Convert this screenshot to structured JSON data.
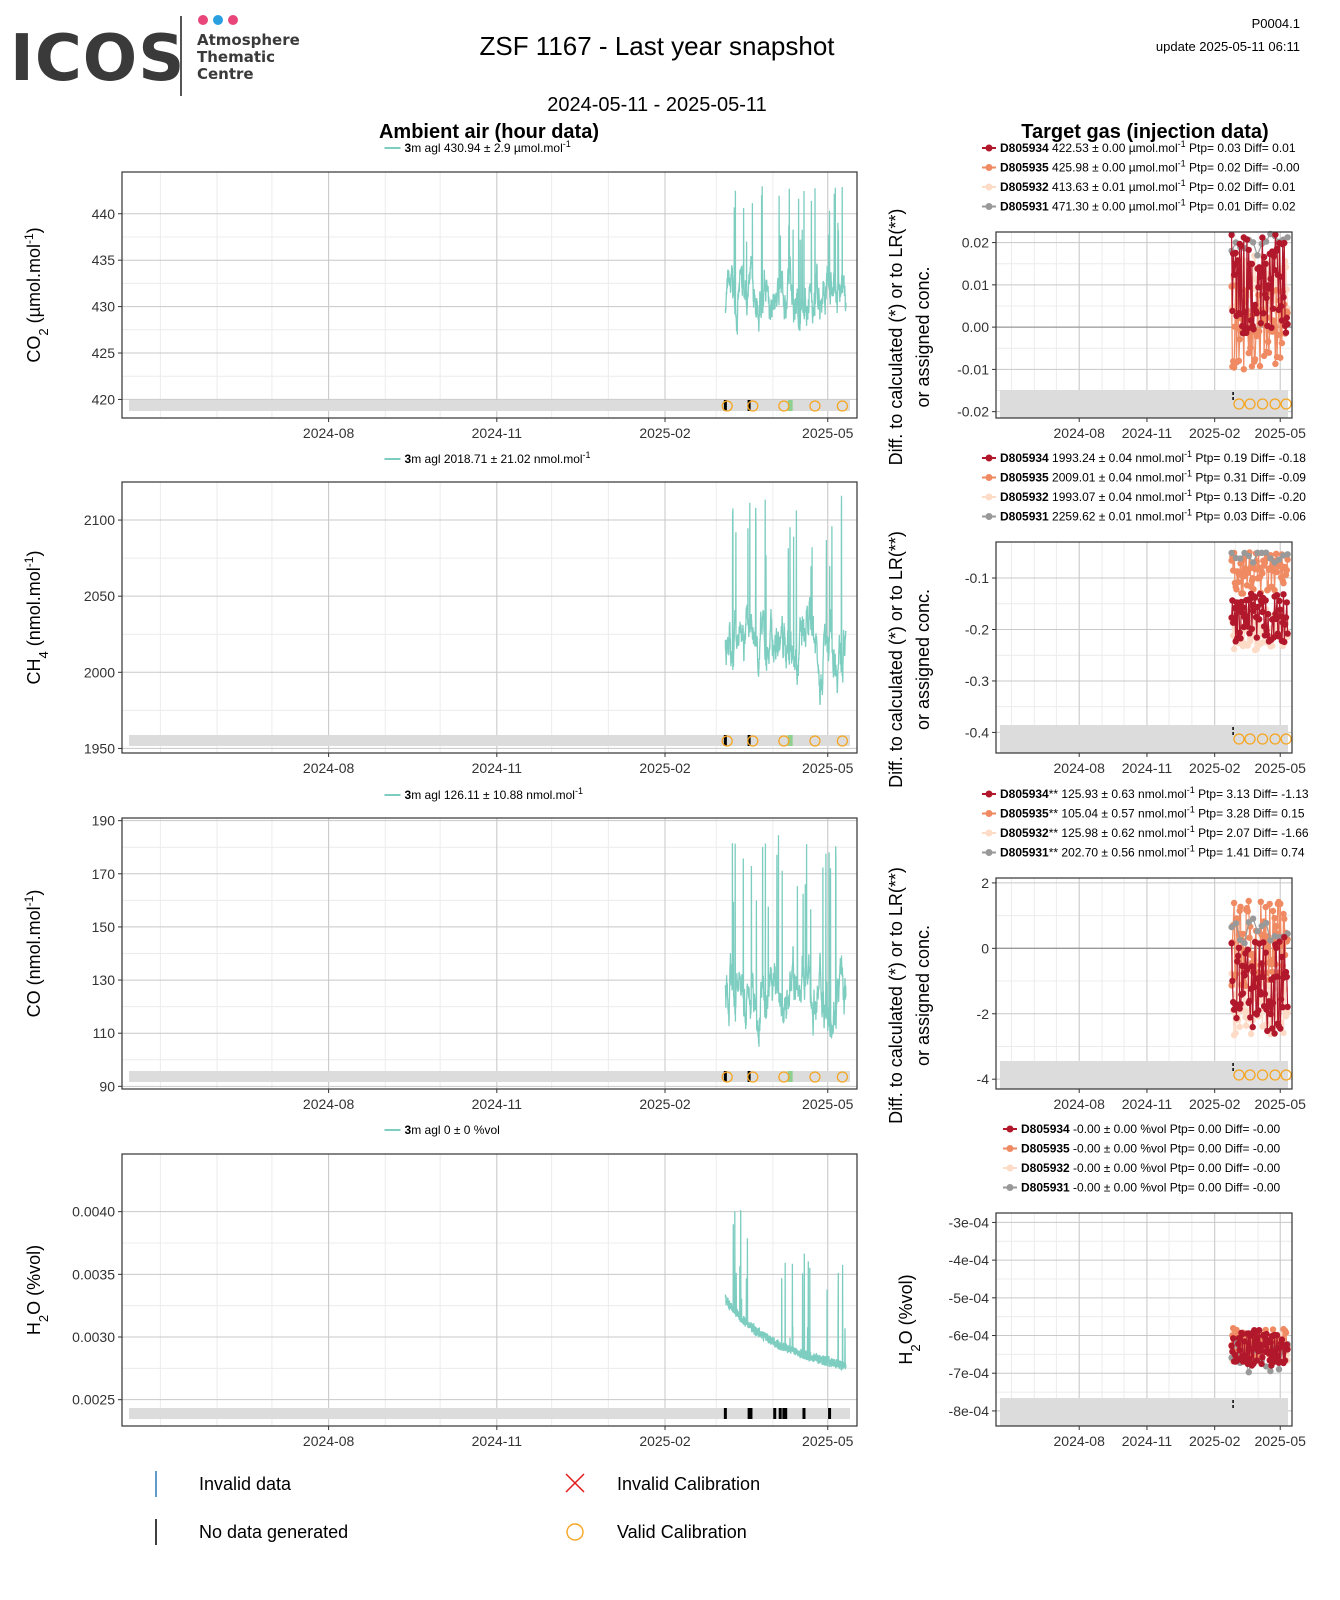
{
  "header": {
    "logo": {
      "wordmark": "ICOS",
      "lines": [
        "Atmosphere",
        "Thematic",
        "Centre"
      ],
      "dot_colors": [
        "#e8457a",
        "#2a9fe0",
        "#e8457a"
      ]
    },
    "title": "ZSF 1167 - Last year snapshot",
    "period": "2024-05-11 - 2025-05-11",
    "code": "P0004.1",
    "update": "update  2025-05-11 06:11"
  },
  "sections": {
    "ambient_title": "Ambient air (hour data)",
    "target_title": "Target gas (injection data)"
  },
  "colors": {
    "ambient_line": "#7dcdc0",
    "D805934": "#b2182b",
    "D805935": "#ef8a62",
    "D805932": "#fddbc7",
    "D805931": "#999999",
    "valid_calibration": "#f5a623",
    "invalid_calibration": "#e31a1c",
    "invalid_data": "#2b7bba",
    "no_data": "#000000",
    "flag_green": "#8fcf8f",
    "band": "#dcdcdc",
    "grid_major": "#c8c8c8",
    "grid_minor": "#ececec"
  },
  "bottom_legend": {
    "invalid_data": "Invalid data",
    "invalid_calibration": "Invalid Calibration",
    "no_data": "No data generated",
    "valid_calibration": "Valid Calibration"
  },
  "chart_data": [
    {
      "id": "co2-ambient",
      "type": "line",
      "ylabel": "CO2 (µmol.mol-1)",
      "legend": {
        "lead": "3",
        "text": "m agl 430.94 ± 2.9 µmol.mol",
        "sup": "-1"
      },
      "x_ticks": [
        "2024-08",
        "2024-11",
        "2025-02",
        "2025-05"
      ],
      "y_ticks": [
        420,
        425,
        430,
        435,
        440
      ],
      "ylim": [
        418,
        444.5
      ],
      "data_range": [
        "2025-03-06",
        "2025-05-11"
      ],
      "series": [
        {
          "name": "3m agl",
          "mean": 430.94,
          "min": 421,
          "max": 443
        }
      ],
      "no_data_marks": [
        "2025-03-06",
        "2025-03-19"
      ],
      "valid_calibration": [
        "2025-03-07",
        "2025-03-21",
        "2025-04-07",
        "2025-04-24",
        "2025-05-09"
      ],
      "green_marks": [
        "2025-04-10",
        "2025-04-11"
      ]
    },
    {
      "id": "ch4-ambient",
      "type": "line",
      "ylabel": "CH4 (nmol.mol-1)",
      "legend": {
        "lead": "3",
        "text": "m agl 2018.71 ± 21.02 nmol.mol",
        "sup": "-1"
      },
      "x_ticks": [
        "2024-08",
        "2024-11",
        "2025-02",
        "2025-05"
      ],
      "y_ticks": [
        1950,
        2000,
        2050,
        2100
      ],
      "ylim": [
        1947,
        2125
      ],
      "data_range": [
        "2025-03-06",
        "2025-05-11"
      ],
      "series": [
        {
          "name": "3m agl",
          "mean": 2018.71,
          "min": 1968,
          "max": 2117
        }
      ],
      "no_data_marks": [
        "2025-03-06",
        "2025-03-19"
      ],
      "valid_calibration": [
        "2025-03-07",
        "2025-03-21",
        "2025-04-07",
        "2025-04-24",
        "2025-05-09"
      ],
      "green_marks": [
        "2025-04-10",
        "2025-04-11"
      ]
    },
    {
      "id": "co-ambient",
      "type": "line",
      "ylabel": "CO (nmol.mol-1)",
      "legend": {
        "lead": "3",
        "text": "m agl 126.11 ± 10.88 nmol.mol",
        "sup": "-1"
      },
      "x_ticks": [
        "2024-08",
        "2024-11",
        "2025-02",
        "2025-05"
      ],
      "y_ticks": [
        90,
        110,
        130,
        150,
        170,
        190
      ],
      "ylim": [
        89,
        191
      ],
      "data_range": [
        "2025-03-06",
        "2025-05-11"
      ],
      "series": [
        {
          "name": "3m agl",
          "mean": 126.11,
          "min": 101,
          "max": 186
        }
      ],
      "no_data_marks": [
        "2025-03-06",
        "2025-03-19"
      ],
      "valid_calibration": [
        "2025-03-07",
        "2025-03-21",
        "2025-04-07",
        "2025-04-24",
        "2025-05-09"
      ],
      "green_marks": [
        "2025-04-10",
        "2025-04-11"
      ]
    },
    {
      "id": "h2o-ambient",
      "type": "line",
      "ylabel": "H2O (%vol)",
      "legend": {
        "lead": "3",
        "text": "m agl 0 ± 0 %vol",
        "sup": ""
      },
      "x_ticks": [
        "2024-08",
        "2024-11",
        "2025-02",
        "2025-05"
      ],
      "y_ticks": [
        "0.0025",
        "0.0030",
        "0.0035",
        "0.0040"
      ],
      "ylim": [
        0.00229,
        0.00446
      ],
      "data_range": [
        "2025-03-06",
        "2025-05-11"
      ],
      "series": [
        {
          "name": "3m agl",
          "mean": 0.0029,
          "min": 0.00255,
          "max": 0.0043
        }
      ],
      "no_data_marks": [
        "2025-03-06",
        "2025-03-19",
        "2025-03-20",
        "2025-04-02",
        "2025-04-05",
        "2025-04-07",
        "2025-04-08",
        "2025-04-18",
        "2025-05-02"
      ],
      "valid_calibration": [],
      "green_marks": []
    },
    {
      "id": "co2-target",
      "type": "scatter",
      "ylabel": "Diff. to calculated (*) or to LR(**) or assigned conc.",
      "x_ticks": [
        "2024-08",
        "2024-11",
        "2025-02",
        "2025-05"
      ],
      "y_ticks": [
        "-0.02",
        "-0.01",
        "0.00",
        "0.01",
        "0.02"
      ],
      "ylim": [
        -0.0215,
        0.0225
      ],
      "legend": [
        {
          "id": "D805934",
          "bold": "D805934",
          "text": " 422.53 ± 0.00 µmol.mol",
          "sup": "-1",
          "tail": " Ptp= 0.03 Diff= 0.01"
        },
        {
          "id": "D805935",
          "bold": "D805935",
          "text": " 425.98 ± 0.00 µmol.mol",
          "sup": "-1",
          "tail": " Ptp= 0.02 Diff= -0.00"
        },
        {
          "id": "D805932",
          "bold": "D805932",
          "text": " 413.63 ± 0.01 µmol.mol",
          "sup": "-1",
          "tail": " Ptp= 0.02 Diff= 0.01"
        },
        {
          "id": "D805931",
          "bold": "D805931",
          "text": " 471.30 ± 0.00 µmol.mol",
          "sup": "-1",
          "tail": " Ptp= 0.01 Diff= 0.02"
        }
      ],
      "series": [
        {
          "name": "D805934",
          "diff": 0.01,
          "spread": 0.012
        },
        {
          "name": "D805935",
          "diff": -0.0,
          "spread": 0.01
        },
        {
          "name": "D805932",
          "diff": 0.01,
          "spread": 0.007
        },
        {
          "name": "D805931",
          "diff": 0.02,
          "spread": 0.004
        }
      ],
      "valid_calibration": [
        "2025-03-06",
        "2025-03-21",
        "2025-04-07",
        "2025-04-24",
        "2025-05-09"
      ]
    },
    {
      "id": "ch4-target",
      "type": "scatter",
      "ylabel": "Diff. to calculated (*) or to LR(**) or assigned conc.",
      "x_ticks": [
        "2024-08",
        "2024-11",
        "2025-02",
        "2025-05"
      ],
      "y_ticks": [
        "-0.4",
        "-0.3",
        "-0.2",
        "-0.1"
      ],
      "ylim": [
        -0.44,
        -0.03
      ],
      "legend": [
        {
          "id": "D805934",
          "bold": "D805934",
          "text": " 1993.24 ± 0.04 nmol.mol",
          "sup": "-1",
          "tail": " Ptp= 0.19 Diff= -0.18"
        },
        {
          "id": "D805935",
          "bold": "D805935",
          "text": " 2009.01 ± 0.04 nmol.mol",
          "sup": "-1",
          "tail": " Ptp= 0.31 Diff= -0.09"
        },
        {
          "id": "D805932",
          "bold": "D805932",
          "text": " 1993.07 ± 0.04 nmol.mol",
          "sup": "-1",
          "tail": " Ptp= 0.13 Diff= -0.20"
        },
        {
          "id": "D805931",
          "bold": "D805931",
          "text": " 2259.62 ± 0.01 nmol.mol",
          "sup": "-1",
          "tail": " Ptp= 0.03 Diff= -0.06"
        }
      ],
      "series": [
        {
          "name": "D805934",
          "diff": -0.18,
          "spread": 0.05
        },
        {
          "name": "D805935",
          "diff": -0.09,
          "spread": 0.04
        },
        {
          "name": "D805932",
          "diff": -0.2,
          "spread": 0.04
        },
        {
          "name": "D805931",
          "diff": -0.06,
          "spread": 0.01
        }
      ],
      "valid_calibration": [
        "2025-03-06",
        "2025-03-21",
        "2025-04-07",
        "2025-04-24",
        "2025-05-09"
      ]
    },
    {
      "id": "co-target",
      "type": "scatter",
      "ylabel": "Diff. to calculated (*) or to LR(**) or assigned conc.",
      "x_ticks": [
        "2024-08",
        "2024-11",
        "2025-02",
        "2025-05"
      ],
      "y_ticks": [
        "-4",
        "-2",
        "0",
        "2"
      ],
      "ylim": [
        -4.3,
        2.15
      ],
      "legend": [
        {
          "id": "D805934",
          "bold": "D805934",
          "text": "** 125.93 ± 0.63 nmol.mol",
          "sup": "-1",
          "tail": " Ptp= 3.13 Diff= -1.13"
        },
        {
          "id": "D805935",
          "bold": "D805935",
          "text": "** 105.04 ± 0.57 nmol.mol",
          "sup": "-1",
          "tail": " Ptp= 3.28 Diff= 0.15"
        },
        {
          "id": "D805932",
          "bold": "D805932",
          "text": "** 125.98 ± 0.62 nmol.mol",
          "sup": "-1",
          "tail": " Ptp= 2.07 Diff= -1.66"
        },
        {
          "id": "D805931",
          "bold": "D805931",
          "text": "** 202.70 ± 0.56 nmol.mol",
          "sup": "-1",
          "tail": " Ptp= 1.41 Diff= 0.74"
        }
      ],
      "series": [
        {
          "name": "D805934",
          "diff": -1.13,
          "spread": 1.5
        },
        {
          "name": "D805935",
          "diff": 0.15,
          "spread": 1.3
        },
        {
          "name": "D805932",
          "diff": -1.66,
          "spread": 1.0
        },
        {
          "name": "D805931",
          "diff": 0.74,
          "spread": 0.6
        }
      ],
      "valid_calibration": [
        "2025-03-06",
        "2025-03-21",
        "2025-04-07",
        "2025-04-24",
        "2025-05-09"
      ]
    },
    {
      "id": "h2o-target",
      "type": "scatter",
      "ylabel": "H2O (%vol)",
      "x_ticks": [
        "2024-08",
        "2024-11",
        "2025-02",
        "2025-05"
      ],
      "y_ticks": [
        "-8e-04",
        "-7e-04",
        "-6e-04",
        "-5e-04",
        "-4e-04",
        "-3e-04"
      ],
      "ylim": [
        -0.00084,
        -0.000275
      ],
      "legend": [
        {
          "id": "D805934",
          "bold": "D805934",
          "text": " -0.00 ± 0.00 %vol Ptp= 0.00 Diff= -0.00",
          "sup": "",
          "tail": ""
        },
        {
          "id": "D805935",
          "bold": "D805935",
          "text": " -0.00 ± 0.00 %vol Ptp= 0.00 Diff= -0.00",
          "sup": "",
          "tail": ""
        },
        {
          "id": "D805932",
          "bold": "D805932",
          "text": " -0.00 ± 0.00 %vol Ptp= 0.00 Diff= -0.00",
          "sup": "",
          "tail": ""
        },
        {
          "id": "D805931",
          "bold": "D805931",
          "text": " -0.00 ± 0.00 %vol Ptp= 0.00 Diff= -0.00",
          "sup": "",
          "tail": ""
        }
      ],
      "series": [
        {
          "name": "D805934",
          "diff": -0.00063,
          "spread": 5e-05
        },
        {
          "name": "D805935",
          "diff": -0.00062,
          "spread": 4e-05
        },
        {
          "name": "D805932",
          "diff": -0.00063,
          "spread": 4e-05
        },
        {
          "name": "D805931",
          "diff": -0.00066,
          "spread": 4e-05
        }
      ],
      "valid_calibration": []
    }
  ]
}
